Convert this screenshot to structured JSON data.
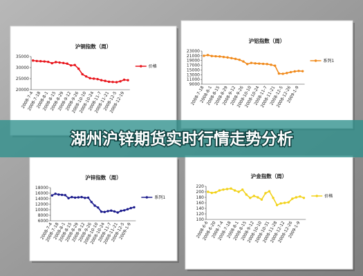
{
  "banner": "湖州沪锌期货实时行情走势分析",
  "chart_data": [
    {
      "type": "line",
      "title": "沪铜指数（周）",
      "categories": [
        "2008-7-4",
        null,
        "2008-7-18",
        null,
        "2008-8-1",
        null,
        "2008-8-15",
        null,
        "2008-8-29",
        null,
        "2008-9-12",
        null,
        "2008-9-26",
        null,
        "2008-10-10",
        null,
        "2008-10-24",
        null,
        "2008-11-7",
        null,
        "2008-11-21",
        null,
        "2008-12-5",
        null,
        "2008-12-19",
        null
      ],
      "series": [
        {
          "name": "价格",
          "color": "#e8141b",
          "values": [
            33200,
            33000,
            32900,
            32800,
            32600,
            32000,
            32500,
            32300,
            32100,
            31800,
            31000,
            31200,
            29500,
            27000,
            26000,
            25200,
            25000,
            24800,
            24300,
            24000,
            23600,
            23500,
            23400,
            23800,
            24500,
            24300
          ]
        }
      ],
      "ylim": [
        20000,
        35000
      ],
      "yticks": [
        20000,
        25000,
        30000,
        35000
      ]
    },
    {
      "type": "line",
      "title": "沪铝指数（周）",
      "categories": [
        "2008-7-18",
        null,
        "2008-8-1",
        null,
        "2008-8-15",
        null,
        "2008-8-29",
        null,
        "2008-9-12",
        null,
        "2008-9-26",
        null,
        "2008-10-10",
        null,
        "2008-10-24",
        null,
        "2008-11-7",
        null,
        "2008-11-21",
        null,
        "2008-12-5",
        null,
        "2008-12-26",
        null,
        "2009-1-9",
        null
      ],
      "series": [
        {
          "name": "系列1",
          "color": "#f08a1c",
          "values": [
            21000,
            21300,
            20900,
            20800,
            20700,
            20500,
            20300,
            20000,
            19700,
            19300,
            18600,
            17500,
            18000,
            17800,
            17700,
            17600,
            17500,
            17200,
            16800,
            13500,
            13400,
            13700,
            14100,
            14400,
            14600,
            14500
          ]
        }
      ],
      "ylim": [
        9000,
        23000
      ],
      "yticks": [
        9000,
        11000,
        13000,
        15000,
        17000,
        19000,
        21000,
        23000
      ]
    },
    {
      "type": "line",
      "title": "沪锌指数（周）",
      "categories": [
        "2008-7-4",
        null,
        "2008-7-18",
        null,
        "2008-8-1",
        null,
        "2008-8-15",
        null,
        "2008-8-29",
        null,
        "2008-9-12",
        null,
        "2008-9-26",
        null,
        "2008-10-10",
        null,
        "2008-10-24",
        null,
        "2008-11-7",
        null,
        "2008-11-21",
        null,
        "2008-12-5",
        null,
        "2009-1-9",
        null
      ],
      "series": [
        {
          "name": "系列1",
          "color": "#1a1a8c",
          "values": [
            15200,
            15800,
            15500,
            15400,
            15300,
            14200,
            14600,
            14400,
            14500,
            14600,
            14300,
            14400,
            12800,
            11500,
            10800,
            9300,
            9200,
            9500,
            9700,
            9400,
            9000,
            9600,
            9800,
            10200,
            10600,
            10900
          ]
        }
      ],
      "ylim": [
        6000,
        18000
      ],
      "yticks": [
        6000,
        8000,
        10000,
        12000,
        14000,
        16000,
        18000
      ]
    },
    {
      "type": "line",
      "title": "沪金指数（周）",
      "categories": [
        "2008-6-6",
        null,
        "2008-6-20",
        null,
        "2008-7-4",
        null,
        "2008-7-18",
        null,
        "2008-8-1",
        null,
        "2008-8-15",
        null,
        "2008-9-12",
        null,
        "2008-10-10",
        null,
        "2008-10-31",
        null,
        "2008-11-28",
        null,
        "2008-12-12",
        null,
        "2008-12-26",
        null,
        "2009-1-9",
        null
      ],
      "series": [
        {
          "name": "价格",
          "color": "#f2d21a",
          "values": [
            200,
            196,
            198,
            205,
            208,
            210,
            212,
            205,
            200,
            208,
            190,
            178,
            185,
            180,
            172,
            195,
            202,
            178,
            152,
            158,
            160,
            162,
            175,
            180,
            183,
            178
          ]
        }
      ],
      "ylim": [
        100,
        220
      ],
      "yticks": [
        100,
        120,
        140,
        160,
        180,
        200,
        220
      ]
    }
  ]
}
